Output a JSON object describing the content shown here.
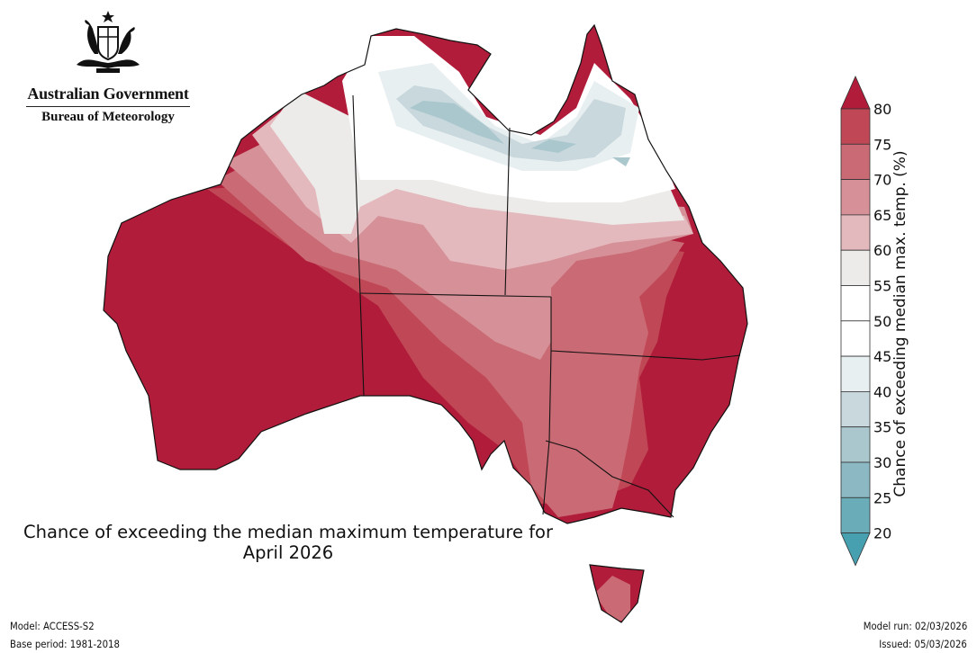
{
  "logo": {
    "government": "Australian Government",
    "agency": "Bureau of Meteorology"
  },
  "map": {
    "title_line1": "Chance of exceeding the median maximum temperature for",
    "title_line2": "April 2026",
    "region": "Australia"
  },
  "colorbar": {
    "label": "Chance of exceeding median max. temp. (%)",
    "ticks": [
      "80",
      "75",
      "70",
      "65",
      "60",
      "55",
      "50",
      "45",
      "40",
      "35",
      "30",
      "25",
      "20"
    ],
    "bins": [
      {
        "range": ">80",
        "color": "#b01c3a"
      },
      {
        "range": "75-80",
        "color": "#c04856"
      },
      {
        "range": "70-75",
        "color": "#ca6a74"
      },
      {
        "range": "65-70",
        "color": "#d69098"
      },
      {
        "range": "60-65",
        "color": "#e3b9bd"
      },
      {
        "range": "55-60",
        "color": "#ecebe9"
      },
      {
        "range": "50-55",
        "color": "#ffffff"
      },
      {
        "range": "45-50",
        "color": "#ffffff"
      },
      {
        "range": "40-45",
        "color": "#e8eff1"
      },
      {
        "range": "35-40",
        "color": "#c9d8dd"
      },
      {
        "range": "30-35",
        "color": "#a9c7cd"
      },
      {
        "range": "25-30",
        "color": "#8bb8c3"
      },
      {
        "range": "20-25",
        "color": "#6aacb8"
      },
      {
        "range": "<20",
        "color": "#46a0b0"
      }
    ]
  },
  "footer": {
    "model": "Model: ACCESS-S2",
    "base_period": "Base period: 1981-2018",
    "model_run": "Model run: 02/03/2026",
    "issued": "Issued: 05/03/2026"
  }
}
